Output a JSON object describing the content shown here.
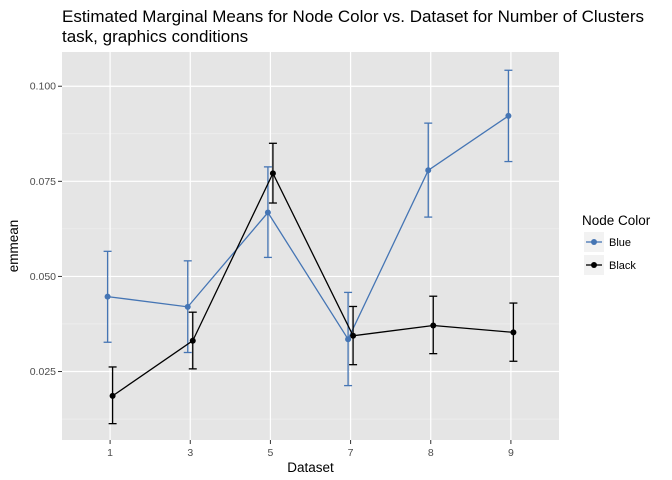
{
  "chart_data": {
    "type": "line",
    "title_lines": [
      "Estimated Marginal Means for Node Color vs. Dataset for Number of Clusters",
      "task, graphics conditions"
    ],
    "xlabel": "Dataset",
    "ylabel": "emmean",
    "categories": [
      "1",
      "3",
      "5",
      "7",
      "8",
      "9"
    ],
    "y_ticks": [
      "0.025",
      "0.050",
      "0.075",
      "0.100"
    ],
    "ylim": [
      0.007,
      0.109
    ],
    "grid": true,
    "legend": {
      "title": "Node Color",
      "position": "right"
    },
    "series": [
      {
        "name": "Blue",
        "color": "#4575b4",
        "values": [
          0.0447,
          0.042,
          0.0668,
          0.0335,
          0.0779,
          0.0922
        ],
        "lower": [
          0.0327,
          0.03,
          0.055,
          0.0213,
          0.0656,
          0.0802
        ],
        "upper": [
          0.0566,
          0.0541,
          0.0788,
          0.0458,
          0.0903,
          0.1042
        ]
      },
      {
        "name": "Black",
        "color": "#000000",
        "values": [
          0.0186,
          0.0331,
          0.0771,
          0.0344,
          0.0371,
          0.0353
        ],
        "lower": [
          0.0113,
          0.0257,
          0.0693,
          0.0268,
          0.0297,
          0.0277
        ],
        "upper": [
          0.0262,
          0.0406,
          0.085,
          0.0421,
          0.0448,
          0.043
        ]
      }
    ]
  }
}
